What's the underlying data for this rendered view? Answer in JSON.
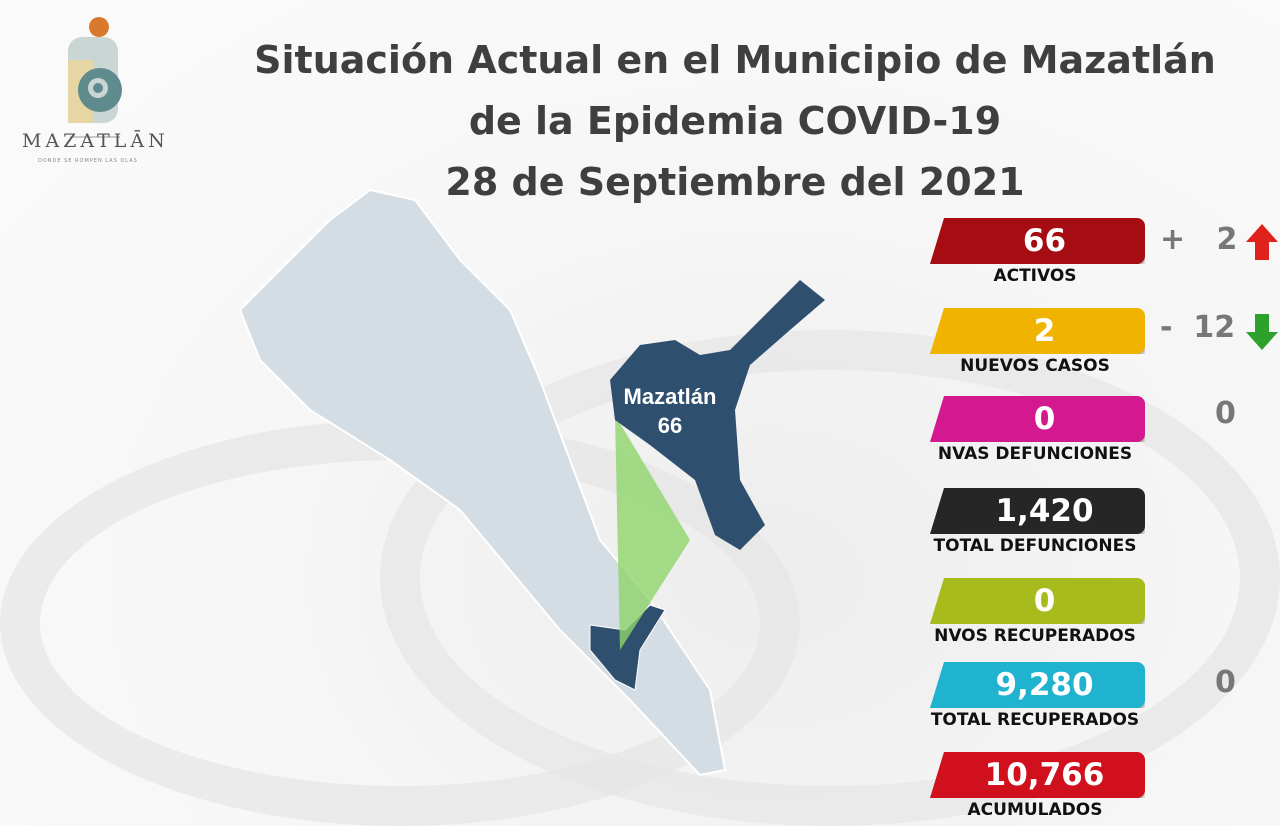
{
  "logo": {
    "wordmark": "MAZATLĀN",
    "tagline": "DONDE SE ROMPEN LAS OLAS"
  },
  "title": {
    "line1": "Situación Actual en el Municipio de Mazatlán",
    "line2": "de la Epidemia COVID-19",
    "line3": "28 de Septiembre del 2021"
  },
  "map": {
    "municipality": "Mazatlán",
    "value": "66",
    "highlight_color": "#2f4f6f",
    "land_color": "#d3dde3"
  },
  "stats": [
    {
      "value": "66",
      "label": "ACTIVOS",
      "color": "#a50d12",
      "delta": "+   2",
      "trend": "up"
    },
    {
      "value": "2",
      "label": "NUEVOS CASOS",
      "color": "#f0b400",
      "delta": "-  12",
      "trend": "down"
    },
    {
      "value": "0",
      "label": "NVAS DEFUNCIONES",
      "color": "#d4188f",
      "delta": "0"
    },
    {
      "value": "1,420",
      "label": "TOTAL DEFUNCIONES",
      "color": "#262626"
    },
    {
      "value": "0",
      "label": "NVOS RECUPERADOS",
      "color": "#a8bb1c"
    },
    {
      "value": "9,280",
      "label": "TOTAL RECUPERADOS",
      "color": "#1fb3cf",
      "delta": "0"
    },
    {
      "value": "10,766",
      "label": "ACUMULADOS",
      "color": "#d0101c"
    }
  ]
}
